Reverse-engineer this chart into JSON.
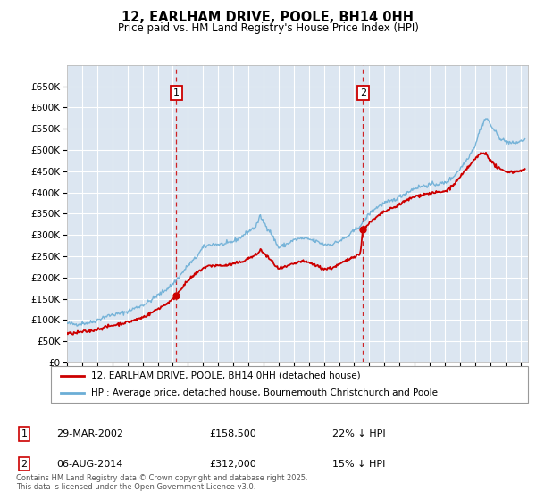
{
  "title": "12, EARLHAM DRIVE, POOLE, BH14 0HH",
  "subtitle": "Price paid vs. HM Land Registry's House Price Index (HPI)",
  "plot_bg_color": "#dce6f1",
  "grid_color": "#ffffff",
  "hpi_color": "#6baed6",
  "sale_color": "#cc0000",
  "dashed_color": "#cc0000",
  "ylim": [
    0,
    700000
  ],
  "yticks": [
    0,
    50000,
    100000,
    150000,
    200000,
    250000,
    300000,
    350000,
    400000,
    450000,
    500000,
    550000,
    600000,
    650000
  ],
  "ytick_labels": [
    "£0",
    "£50K",
    "£100K",
    "£150K",
    "£200K",
    "£250K",
    "£300K",
    "£350K",
    "£400K",
    "£450K",
    "£500K",
    "£550K",
    "£600K",
    "£650K"
  ],
  "sale1_x": 2002.23,
  "sale1_y": 158500,
  "sale2_x": 2014.58,
  "sale2_y": 312000,
  "legend_line1": "12, EARLHAM DRIVE, POOLE, BH14 0HH (detached house)",
  "legend_line2": "HPI: Average price, detached house, Bournemouth Christchurch and Poole",
  "footer": "Contains HM Land Registry data © Crown copyright and database right 2025.\nThis data is licensed under the Open Government Licence v3.0.",
  "xmin": 1995.0,
  "xmax": 2025.5,
  "hpi_anchors": [
    [
      1995.0,
      92000
    ],
    [
      1995.5,
      90000
    ],
    [
      1996.0,
      92000
    ],
    [
      1996.5,
      94000
    ],
    [
      1997.0,
      100000
    ],
    [
      1997.5,
      108000
    ],
    [
      1998.0,
      112000
    ],
    [
      1998.5,
      115000
    ],
    [
      1999.0,
      120000
    ],
    [
      1999.5,
      128000
    ],
    [
      2000.0,
      135000
    ],
    [
      2000.5,
      145000
    ],
    [
      2001.0,
      158000
    ],
    [
      2001.5,
      170000
    ],
    [
      2002.0,
      185000
    ],
    [
      2002.5,
      205000
    ],
    [
      2003.0,
      228000
    ],
    [
      2003.5,
      245000
    ],
    [
      2004.0,
      270000
    ],
    [
      2004.5,
      278000
    ],
    [
      2005.0,
      278000
    ],
    [
      2005.5,
      278000
    ],
    [
      2006.0,
      285000
    ],
    [
      2006.5,
      295000
    ],
    [
      2007.0,
      308000
    ],
    [
      2007.5,
      320000
    ],
    [
      2007.8,
      345000
    ],
    [
      2008.0,
      330000
    ],
    [
      2008.5,
      305000
    ],
    [
      2009.0,
      270000
    ],
    [
      2009.5,
      278000
    ],
    [
      2010.0,
      288000
    ],
    [
      2010.5,
      292000
    ],
    [
      2011.0,
      290000
    ],
    [
      2011.5,
      285000
    ],
    [
      2012.0,
      278000
    ],
    [
      2012.5,
      278000
    ],
    [
      2013.0,
      285000
    ],
    [
      2013.5,
      295000
    ],
    [
      2014.0,
      310000
    ],
    [
      2014.5,
      325000
    ],
    [
      2015.0,
      350000
    ],
    [
      2015.5,
      365000
    ],
    [
      2016.0,
      375000
    ],
    [
      2016.5,
      380000
    ],
    [
      2017.0,
      390000
    ],
    [
      2017.5,
      400000
    ],
    [
      2018.0,
      410000
    ],
    [
      2018.5,
      415000
    ],
    [
      2019.0,
      418000
    ],
    [
      2019.5,
      420000
    ],
    [
      2020.0,
      422000
    ],
    [
      2020.5,
      435000
    ],
    [
      2021.0,
      455000
    ],
    [
      2021.5,
      480000
    ],
    [
      2022.0,
      510000
    ],
    [
      2022.3,
      545000
    ],
    [
      2022.6,
      570000
    ],
    [
      2022.8,
      575000
    ],
    [
      2023.0,
      560000
    ],
    [
      2023.3,
      545000
    ],
    [
      2023.6,
      530000
    ],
    [
      2024.0,
      520000
    ],
    [
      2024.5,
      515000
    ],
    [
      2025.0,
      520000
    ],
    [
      2025.3,
      525000
    ]
  ],
  "sale_anchors": [
    [
      1995.0,
      68000
    ],
    [
      1995.5,
      69000
    ],
    [
      1996.0,
      72000
    ],
    [
      1996.5,
      74000
    ],
    [
      1997.0,
      78000
    ],
    [
      1997.5,
      83000
    ],
    [
      1998.0,
      87000
    ],
    [
      1998.5,
      91000
    ],
    [
      1999.0,
      95000
    ],
    [
      1999.5,
      100000
    ],
    [
      2000.0,
      106000
    ],
    [
      2000.5,
      115000
    ],
    [
      2001.0,
      126000
    ],
    [
      2001.5,
      136000
    ],
    [
      2002.0,
      148000
    ],
    [
      2002.23,
      158500
    ],
    [
      2002.5,
      172000
    ],
    [
      2003.0,
      192000
    ],
    [
      2003.5,
      208000
    ],
    [
      2004.0,
      222000
    ],
    [
      2004.5,
      228000
    ],
    [
      2005.0,
      228000
    ],
    [
      2005.5,
      228000
    ],
    [
      2006.0,
      232000
    ],
    [
      2006.5,
      236000
    ],
    [
      2007.0,
      245000
    ],
    [
      2007.5,
      252000
    ],
    [
      2007.8,
      265000
    ],
    [
      2008.0,
      258000
    ],
    [
      2008.5,
      240000
    ],
    [
      2009.0,
      220000
    ],
    [
      2009.5,
      225000
    ],
    [
      2010.0,
      232000
    ],
    [
      2010.5,
      238000
    ],
    [
      2011.0,
      235000
    ],
    [
      2011.5,
      228000
    ],
    [
      2012.0,
      220000
    ],
    [
      2012.5,
      222000
    ],
    [
      2013.0,
      230000
    ],
    [
      2013.5,
      240000
    ],
    [
      2014.0,
      250000
    ],
    [
      2014.4,
      255000
    ],
    [
      2014.58,
      312000
    ],
    [
      2014.7,
      318000
    ],
    [
      2015.0,
      328000
    ],
    [
      2015.5,
      342000
    ],
    [
      2016.0,
      355000
    ],
    [
      2016.5,
      362000
    ],
    [
      2017.0,
      372000
    ],
    [
      2017.5,
      382000
    ],
    [
      2018.0,
      390000
    ],
    [
      2018.5,
      395000
    ],
    [
      2019.0,
      398000
    ],
    [
      2019.5,
      400000
    ],
    [
      2020.0,
      402000
    ],
    [
      2020.5,
      415000
    ],
    [
      2021.0,
      435000
    ],
    [
      2021.5,
      458000
    ],
    [
      2022.0,
      478000
    ],
    [
      2022.3,
      490000
    ],
    [
      2022.6,
      493000
    ],
    [
      2022.8,
      490000
    ],
    [
      2023.0,
      475000
    ],
    [
      2023.3,
      465000
    ],
    [
      2023.6,
      455000
    ],
    [
      2024.0,
      450000
    ],
    [
      2024.5,
      448000
    ],
    [
      2025.0,
      452000
    ],
    [
      2025.3,
      453000
    ]
  ]
}
